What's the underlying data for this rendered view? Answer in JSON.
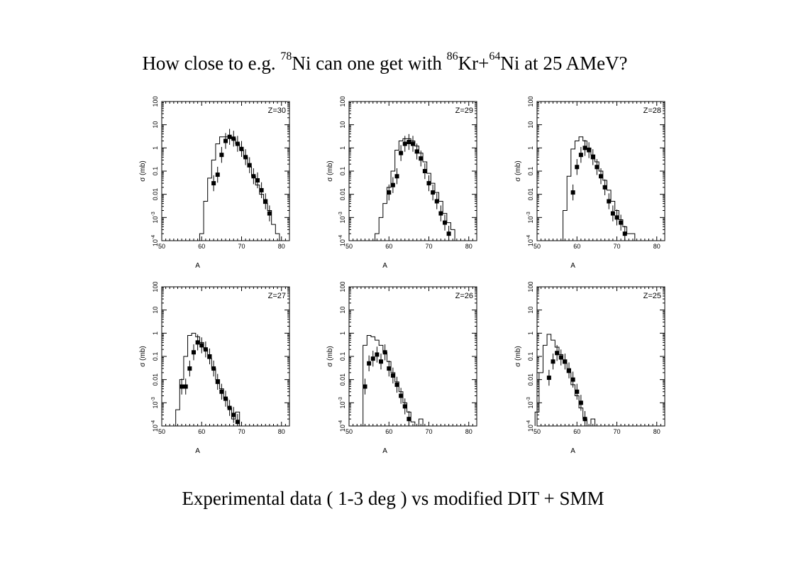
{
  "title": {
    "parts": [
      {
        "text": "How close to e.g. ",
        "sup": false
      },
      {
        "text": "78",
        "sup": true
      },
      {
        "text": "Ni can one get with ",
        "sup": false
      },
      {
        "text": "86",
        "sup": true
      },
      {
        "text": "Kr+",
        "sup": false
      },
      {
        "text": "64",
        "sup": true
      },
      {
        "text": "Ni at 25 AMeV?",
        "sup": false
      }
    ]
  },
  "caption": "Experimental data ( 1-3 deg ) vs modified DIT + SMM",
  "chart_data": [
    {
      "type": "scatter",
      "panel_label": "Z=30",
      "xlabel": "A",
      "ylabel": "σ (mb)",
      "xlim": [
        50,
        82
      ],
      "ylim": [
        0.0001,
        100
      ],
      "yscale": "log",
      "xticks": [
        50,
        60,
        70,
        80
      ],
      "yticks": [
        "10^-4",
        "10^-3",
        "0.01",
        "0.1",
        "1",
        "10",
        "100"
      ],
      "series": [
        {
          "kind": "points",
          "x": [
            63,
            64,
            65,
            66,
            67,
            68,
            69,
            70,
            71,
            72,
            73,
            74,
            75,
            76,
            77
          ],
          "y": [
            0.03,
            0.07,
            0.5,
            2,
            3,
            2.5,
            1.5,
            0.9,
            0.4,
            0.18,
            0.06,
            0.04,
            0.015,
            0.005,
            0.0015
          ]
        },
        {
          "kind": "histogram",
          "x": [
            60,
            61,
            62,
            63,
            64,
            65,
            66,
            67,
            68,
            69,
            70,
            71,
            72,
            73,
            74,
            75,
            76,
            77,
            78,
            79,
            80
          ],
          "y": [
            0.0002,
            0.005,
            0.05,
            0.3,
            1.5,
            3,
            3,
            3,
            2.5,
            1.5,
            0.8,
            0.4,
            0.15,
            0.06,
            0.025,
            0.01,
            0.004,
            0.002,
            0.0005,
            0.0002,
            0.0001
          ]
        }
      ]
    },
    {
      "type": "scatter",
      "panel_label": "Z=29",
      "xlabel": "A",
      "ylabel": "σ (mb)",
      "xlim": [
        50,
        82
      ],
      "ylim": [
        0.0001,
        100
      ],
      "yscale": "log",
      "xticks": [
        50,
        60,
        70,
        80
      ],
      "yticks": [
        "10^-4",
        "10^-3",
        "0.01",
        "0.1",
        "1",
        "10",
        "100"
      ],
      "series": [
        {
          "kind": "points",
          "x": [
            60,
            61,
            62,
            63,
            64,
            65,
            66,
            67,
            68,
            69,
            70,
            71,
            72,
            73,
            74,
            75
          ],
          "y": [
            0.012,
            0.025,
            0.06,
            0.6,
            1.5,
            1.8,
            1.5,
            0.7,
            0.35,
            0.1,
            0.03,
            0.012,
            0.005,
            0.0015,
            0.0006,
            0.0002
          ]
        },
        {
          "kind": "histogram",
          "x": [
            57,
            58,
            59,
            60,
            61,
            62,
            63,
            64,
            65,
            66,
            67,
            68,
            69,
            70,
            71,
            72,
            73,
            74,
            75,
            76,
            77
          ],
          "y": [
            0.0002,
            0.001,
            0.004,
            0.02,
            0.1,
            0.8,
            2,
            2.5,
            2.5,
            2,
            1.2,
            0.6,
            0.25,
            0.08,
            0.03,
            0.012,
            0.005,
            0.0015,
            0.0006,
            0.0003,
            0.0001
          ]
        }
      ]
    },
    {
      "type": "scatter",
      "panel_label": "Z=28",
      "xlabel": "A",
      "ylabel": "σ (mb)",
      "xlim": [
        50,
        82
      ],
      "ylim": [
        0.0001,
        100
      ],
      "yscale": "log",
      "xticks": [
        50,
        60,
        70,
        80
      ],
      "yticks": [
        "10^-4",
        "10^-3",
        "0.01",
        "0.1",
        "1",
        "10",
        "100"
      ],
      "series": [
        {
          "kind": "points",
          "x": [
            59,
            60,
            61,
            62,
            63,
            64,
            65,
            66,
            67,
            68,
            69,
            70,
            71,
            72
          ],
          "y": [
            0.012,
            0.15,
            0.5,
            1,
            0.8,
            0.4,
            0.15,
            0.06,
            0.02,
            0.005,
            0.0015,
            0.001,
            0.0006,
            0.0002
          ]
        },
        {
          "kind": "histogram",
          "x": [
            56,
            57,
            58,
            59,
            60,
            61,
            62,
            63,
            64,
            65,
            66,
            67,
            68,
            69,
            70,
            71,
            72,
            73,
            74
          ],
          "y": [
            0.0001,
            0.002,
            0.06,
            0.9,
            2,
            3,
            2,
            1,
            0.5,
            0.25,
            0.1,
            0.04,
            0.015,
            0.005,
            0.002,
            0.0008,
            0.0004,
            0.0002,
            0.0002
          ]
        }
      ]
    },
    {
      "type": "scatter",
      "panel_label": "Z=27",
      "xlabel": "A",
      "ylabel": "σ (mb)",
      "xlim": [
        50,
        82
      ],
      "ylim": [
        0.0001,
        100
      ],
      "yscale": "log",
      "xticks": [
        50,
        60,
        70,
        80
      ],
      "yticks": [
        "10^-4",
        "10^-3",
        "0.01",
        "0.1",
        "1",
        "10",
        "100"
      ],
      "series": [
        {
          "kind": "points",
          "x": [
            55,
            56,
            57,
            58,
            59,
            60,
            61,
            62,
            63,
            64,
            65,
            66,
            67,
            68,
            69
          ],
          "y": [
            0.005,
            0.005,
            0.03,
            0.15,
            0.4,
            0.3,
            0.2,
            0.1,
            0.03,
            0.008,
            0.003,
            0.0015,
            0.0006,
            0.0003,
            0.00015
          ]
        },
        {
          "kind": "histogram",
          "x": [
            54,
            55,
            56,
            57,
            58,
            59,
            60,
            61,
            62,
            63,
            64,
            65,
            66,
            67,
            68,
            69
          ],
          "y": [
            0.0005,
            0.01,
            0.1,
            0.8,
            1,
            0.7,
            0.4,
            0.2,
            0.08,
            0.03,
            0.01,
            0.004,
            0.0015,
            0.0006,
            0.0002,
            0.0004
          ]
        }
      ]
    },
    {
      "type": "scatter",
      "panel_label": "Z=26",
      "xlabel": "A",
      "ylabel": "σ (mb)",
      "xlim": [
        50,
        82
      ],
      "ylim": [
        0.0001,
        100
      ],
      "yscale": "log",
      "xticks": [
        50,
        60,
        70,
        80
      ],
      "yticks": [
        "10^-4",
        "10^-3",
        "0.01",
        "0.1",
        "1",
        "10",
        "100"
      ],
      "series": [
        {
          "kind": "points",
          "x": [
            54,
            55,
            56,
            57,
            58,
            59,
            60,
            61,
            62,
            63,
            64,
            65
          ],
          "y": [
            0.005,
            0.05,
            0.08,
            0.12,
            0.06,
            0.15,
            0.03,
            0.015,
            0.006,
            0.002,
            0.0007,
            0.0002
          ]
        },
        {
          "kind": "histogram",
          "x": [
            53,
            54,
            55,
            56,
            57,
            58,
            59,
            60,
            61,
            62,
            63,
            64,
            65,
            66,
            67,
            68
          ],
          "y": [
            0.0001,
            0.3,
            0.8,
            0.7,
            0.5,
            0.3,
            0.15,
            0.06,
            0.02,
            0.008,
            0.003,
            0.001,
            0.0004,
            0.00015,
            0.0001,
            0.0002
          ]
        }
      ]
    },
    {
      "type": "scatter",
      "panel_label": "Z=25",
      "xlabel": "A",
      "ylabel": "σ (mb)",
      "xlim": [
        50,
        82
      ],
      "ylim": [
        0.0001,
        100
      ],
      "yscale": "log",
      "xticks": [
        50,
        60,
        70,
        80
      ],
      "yticks": [
        "10^-4",
        "10^-3",
        "0.01",
        "0.1",
        "1",
        "10",
        "100"
      ],
      "series": [
        {
          "kind": "points",
          "x": [
            53,
            54,
            55,
            56,
            57,
            58,
            59,
            60,
            61,
            62
          ],
          "y": [
            0.012,
            0.06,
            0.14,
            0.09,
            0.06,
            0.025,
            0.01,
            0.003,
            0.001,
            0.0002
          ]
        },
        {
          "kind": "histogram",
          "x": [
            50,
            51,
            52,
            53,
            54,
            55,
            56,
            57,
            58,
            59,
            60,
            61,
            62,
            63,
            64
          ],
          "y": [
            0.0004,
            0.02,
            0.3,
            0.9,
            0.5,
            0.25,
            0.12,
            0.05,
            0.02,
            0.006,
            0.002,
            0.0006,
            0.0002,
            0.0001,
            0.0002
          ]
        }
      ]
    }
  ]
}
